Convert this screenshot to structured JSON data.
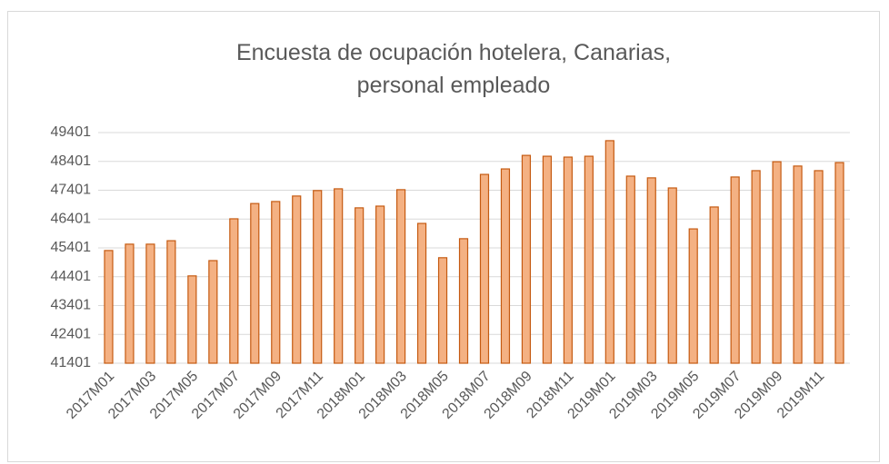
{
  "chart_data": {
    "type": "bar",
    "title": "Encuesta de ocupación hotelera, Canarias, personal empleado",
    "categories": [
      "2017M01",
      null,
      "2017M03",
      null,
      "2017M05",
      null,
      "2017M07",
      null,
      "2017M09",
      null,
      "2017M11",
      null,
      "2018M01",
      null,
      "2018M03",
      null,
      "2018M05",
      null,
      "2018M07",
      null,
      "2018M09",
      null,
      "2018M11",
      null,
      "2019M01",
      null,
      "2019M03",
      null,
      "2019M05",
      null,
      "2019M07",
      null,
      "2019M09",
      null,
      "2019M11",
      null
    ],
    "values": [
      45310,
      45530,
      45530,
      45650,
      44430,
      44960,
      46410,
      46940,
      47010,
      47200,
      47390,
      47450,
      46790,
      46850,
      47420,
      46250,
      45060,
      45720,
      47950,
      48140,
      48610,
      48580,
      48550,
      48580,
      49120,
      47890,
      47830,
      47480,
      46060,
      46820,
      47860,
      48080,
      48390,
      48240,
      48080,
      48360
    ],
    "color": "#f4b183",
    "edge_color": "#c55a11",
    "ylim": [
      41401,
      49401
    ],
    "yticks": [
      41401,
      42401,
      43401,
      44401,
      45401,
      46401,
      47401,
      48401,
      49401
    ],
    "grid": true
  }
}
